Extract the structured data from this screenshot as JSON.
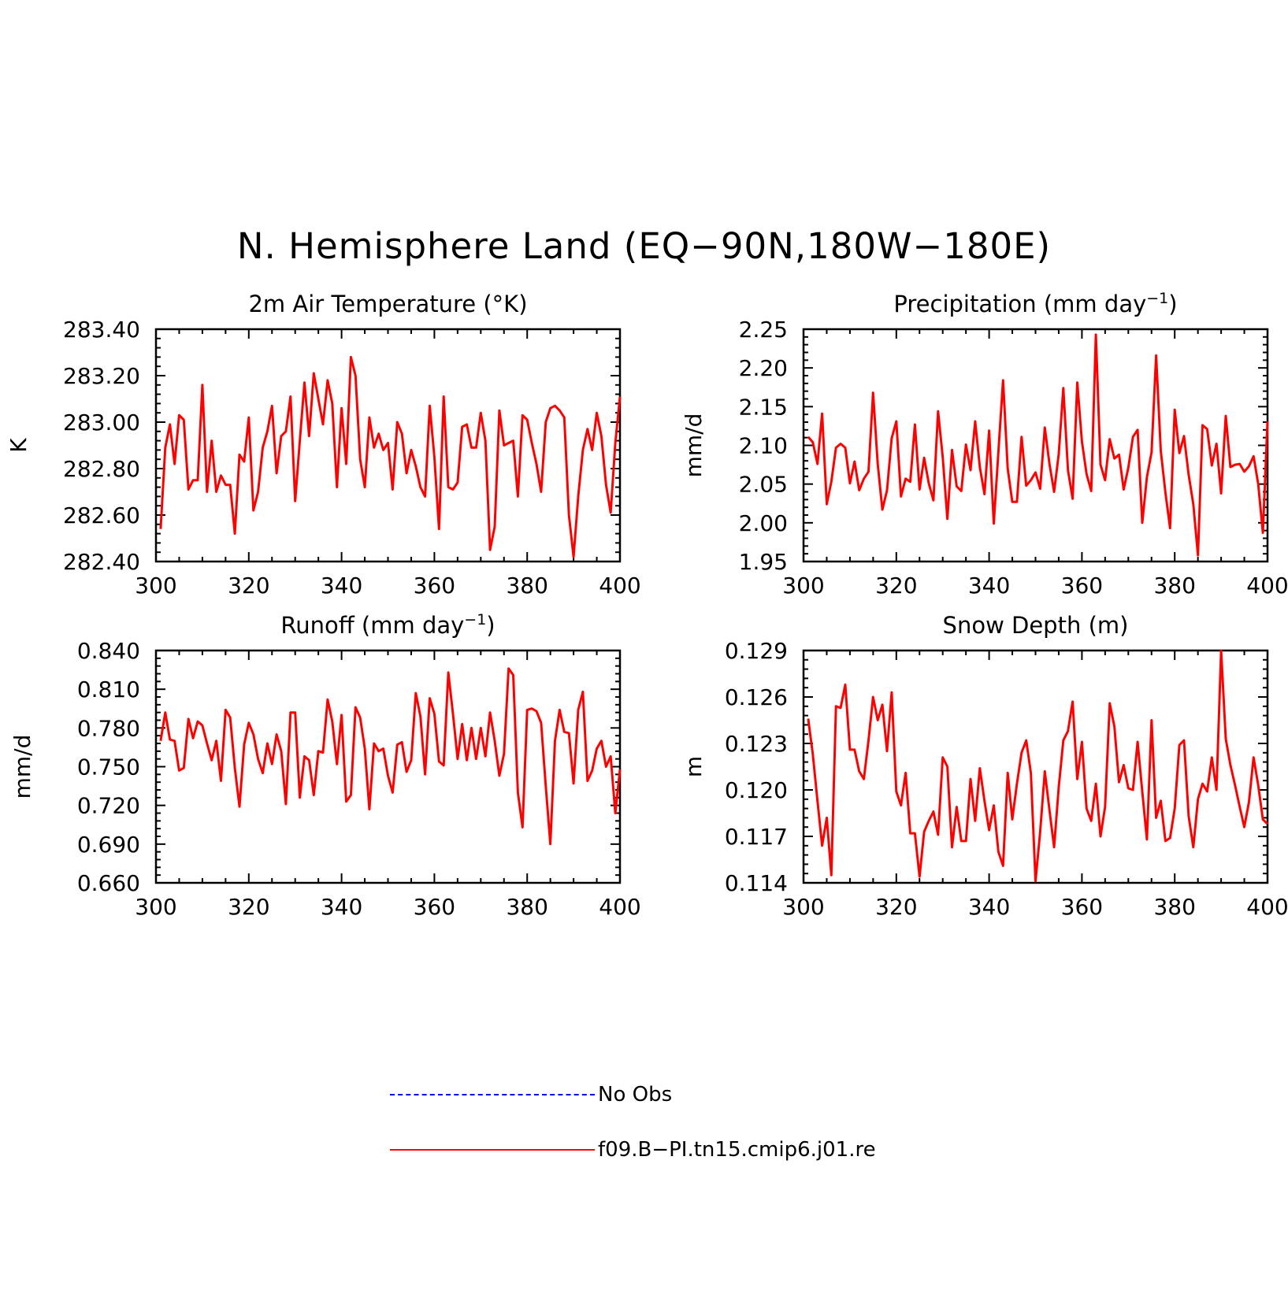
{
  "page": {
    "title": "N. Hemisphere Land (EQ−90N,180W−180E)"
  },
  "colors": {
    "series": "#ff0000",
    "obs": "#0000ff",
    "axis": "#000000"
  },
  "legend": {
    "items": [
      {
        "label": "No Obs",
        "style": "dashed",
        "color": "#0000ff"
      },
      {
        "label": "f09.B−PI.tn15.cmip6.j01.re",
        "style": "solid",
        "color": "#ff0000"
      }
    ]
  },
  "chart_data": [
    {
      "type": "line",
      "title": "2m Air Temperature (°K)",
      "ylabel": "K",
      "xlim": [
        300,
        400
      ],
      "ylim": [
        282.4,
        283.4
      ],
      "xticks": [
        300,
        320,
        340,
        360,
        380,
        400
      ],
      "yticks": [
        282.4,
        282.6,
        282.8,
        283.0,
        283.2,
        283.4
      ],
      "ytick_labels": [
        "282.40",
        "282.60",
        "282.80",
        "283.00",
        "283.20",
        "283.40"
      ],
      "x_start": 301,
      "values": [
        282.54,
        282.89,
        282.99,
        282.82,
        283.03,
        283.01,
        282.71,
        282.75,
        282.75,
        283.16,
        282.7,
        282.92,
        282.7,
        282.77,
        282.73,
        282.73,
        282.52,
        282.86,
        282.83,
        283.02,
        282.62,
        282.7,
        282.89,
        282.96,
        283.07,
        282.78,
        282.94,
        282.96,
        283.11,
        282.66,
        282.92,
        283.17,
        282.94,
        283.21,
        283.1,
        282.99,
        283.18,
        283.08,
        282.72,
        283.06,
        282.82,
        283.28,
        283.2,
        282.84,
        282.72,
        283.02,
        282.89,
        282.95,
        282.88,
        282.91,
        282.71,
        283.0,
        282.95,
        282.78,
        282.88,
        282.81,
        282.72,
        282.68,
        283.07,
        282.85,
        282.54,
        283.11,
        282.72,
        282.71,
        282.74,
        282.98,
        282.99,
        282.89,
        282.89,
        283.04,
        282.92,
        282.45,
        282.55,
        283.05,
        282.9,
        282.91,
        282.92,
        282.68,
        283.03,
        283.01,
        282.91,
        282.82,
        282.7,
        283.0,
        283.06,
        283.07,
        283.05,
        283.02,
        282.6,
        282.42,
        282.68,
        282.88,
        282.97,
        282.88,
        283.04,
        282.94,
        282.73,
        282.61,
        282.91,
        283.11
      ],
      "series": [
        {
          "name": "f09.B−PI.tn15.cmip6.j01.re"
        }
      ]
    },
    {
      "type": "line",
      "title": "Precipitation (mm day",
      "title_sup": "−1",
      "title_end": ")",
      "ylabel": "mm/d",
      "xlim": [
        300,
        400
      ],
      "ylim": [
        1.95,
        2.25
      ],
      "xticks": [
        300,
        320,
        340,
        360,
        380,
        400
      ],
      "yticks": [
        1.95,
        2.0,
        2.05,
        2.1,
        2.15,
        2.2,
        2.25
      ],
      "ytick_labels": [
        "1.95",
        "2.00",
        "2.05",
        "2.10",
        "2.15",
        "2.20",
        "2.25"
      ],
      "x_start": 301,
      "values": [
        2.111,
        2.104,
        2.076,
        2.141,
        2.024,
        2.053,
        2.097,
        2.102,
        2.097,
        2.051,
        2.079,
        2.042,
        2.057,
        2.066,
        2.168,
        2.076,
        2.017,
        2.042,
        2.109,
        2.131,
        2.034,
        2.057,
        2.053,
        2.127,
        2.043,
        2.084,
        2.051,
        2.029,
        2.144,
        2.085,
        2.005,
        2.094,
        2.047,
        2.041,
        2.101,
        2.068,
        2.131,
        2.072,
        2.037,
        2.119,
        1.999,
        2.092,
        2.184,
        2.07,
        2.027,
        2.027,
        2.111,
        2.048,
        2.055,
        2.065,
        2.044,
        2.123,
        2.076,
        2.04,
        2.089,
        2.174,
        2.068,
        2.031,
        2.181,
        2.105,
        2.063,
        2.041,
        2.243,
        2.075,
        2.055,
        2.108,
        2.083,
        2.088,
        2.043,
        2.071,
        2.111,
        2.12,
        2.0,
        2.059,
        2.091,
        2.216,
        2.093,
        2.039,
        1.993,
        2.146,
        2.09,
        2.112,
        2.062,
        2.024,
        1.958,
        2.126,
        2.121,
        2.074,
        2.102,
        2.038,
        2.138,
        2.072,
        2.075,
        2.076,
        2.066,
        2.073,
        2.086,
        2.05,
        1.987,
        2.131
      ]
    },
    {
      "type": "line",
      "title": "Runoff (mm day",
      "title_sup": "−1",
      "title_end": ")",
      "ylabel": "mm/d",
      "xlim": [
        300,
        400
      ],
      "ylim": [
        0.66,
        0.84
      ],
      "xticks": [
        300,
        320,
        340,
        360,
        380,
        400
      ],
      "yticks": [
        0.66,
        0.69,
        0.72,
        0.75,
        0.78,
        0.81,
        0.84
      ],
      "ytick_labels": [
        "0.660",
        "0.690",
        "0.720",
        "0.750",
        "0.780",
        "0.810",
        "0.840"
      ],
      "x_start": 301,
      "values": [
        0.77,
        0.792,
        0.771,
        0.77,
        0.747,
        0.749,
        0.787,
        0.772,
        0.785,
        0.782,
        0.768,
        0.755,
        0.77,
        0.739,
        0.794,
        0.788,
        0.749,
        0.719,
        0.767,
        0.784,
        0.775,
        0.756,
        0.745,
        0.768,
        0.752,
        0.775,
        0.762,
        0.721,
        0.792,
        0.792,
        0.726,
        0.758,
        0.755,
        0.728,
        0.762,
        0.761,
        0.802,
        0.785,
        0.752,
        0.79,
        0.723,
        0.728,
        0.796,
        0.788,
        0.764,
        0.717,
        0.768,
        0.762,
        0.764,
        0.743,
        0.73,
        0.767,
        0.769,
        0.746,
        0.755,
        0.807,
        0.789,
        0.744,
        0.803,
        0.791,
        0.754,
        0.751,
        0.823,
        0.791,
        0.756,
        0.783,
        0.755,
        0.78,
        0.756,
        0.78,
        0.758,
        0.792,
        0.77,
        0.743,
        0.76,
        0.826,
        0.821,
        0.73,
        0.703,
        0.794,
        0.795,
        0.793,
        0.784,
        0.735,
        0.69,
        0.77,
        0.794,
        0.777,
        0.776,
        0.737,
        0.794,
        0.808,
        0.739,
        0.747,
        0.764,
        0.77,
        0.75,
        0.758,
        0.714,
        0.748
      ]
    },
    {
      "type": "line",
      "title": "Snow Depth (m)",
      "ylabel": "m",
      "xlim": [
        300,
        400
      ],
      "ylim": [
        0.114,
        0.129
      ],
      "xticks": [
        300,
        320,
        340,
        360,
        380,
        400
      ],
      "yticks": [
        0.114,
        0.117,
        0.12,
        0.123,
        0.126,
        0.129
      ],
      "ytick_labels": [
        "0.114",
        "0.117",
        "0.120",
        "0.123",
        "0.126",
        "0.129"
      ],
      "x_start": 301,
      "values": [
        0.1246,
        0.1223,
        0.1193,
        0.1164,
        0.1182,
        0.1145,
        0.1254,
        0.1253,
        0.1268,
        0.1226,
        0.1226,
        0.1212,
        0.1207,
        0.1232,
        0.126,
        0.1245,
        0.1255,
        0.1225,
        0.1263,
        0.1199,
        0.119,
        0.1211,
        0.1172,
        0.1172,
        0.1144,
        0.1173,
        0.118,
        0.1186,
        0.1171,
        0.1221,
        0.1215,
        0.1163,
        0.1189,
        0.1167,
        0.1167,
        0.1207,
        0.118,
        0.1214,
        0.1193,
        0.1174,
        0.119,
        0.116,
        0.1151,
        0.1211,
        0.1181,
        0.1204,
        0.1224,
        0.1232,
        0.1211,
        0.1141,
        0.1173,
        0.1212,
        0.1187,
        0.1163,
        0.1202,
        0.1232,
        0.1238,
        0.1257,
        0.1207,
        0.1231,
        0.1188,
        0.118,
        0.1204,
        0.117,
        0.1189,
        0.1256,
        0.1241,
        0.1205,
        0.1216,
        0.1201,
        0.12,
        0.1231,
        0.1199,
        0.1168,
        0.1245,
        0.1182,
        0.1193,
        0.1167,
        0.1169,
        0.1188,
        0.1229,
        0.1232,
        0.1183,
        0.1163,
        0.1194,
        0.1204,
        0.1199,
        0.1221,
        0.12,
        0.129,
        0.1233,
        0.1216,
        0.1203,
        0.1189,
        0.1176,
        0.1192,
        0.1221,
        0.1203,
        0.1181,
        0.1178
      ]
    }
  ]
}
